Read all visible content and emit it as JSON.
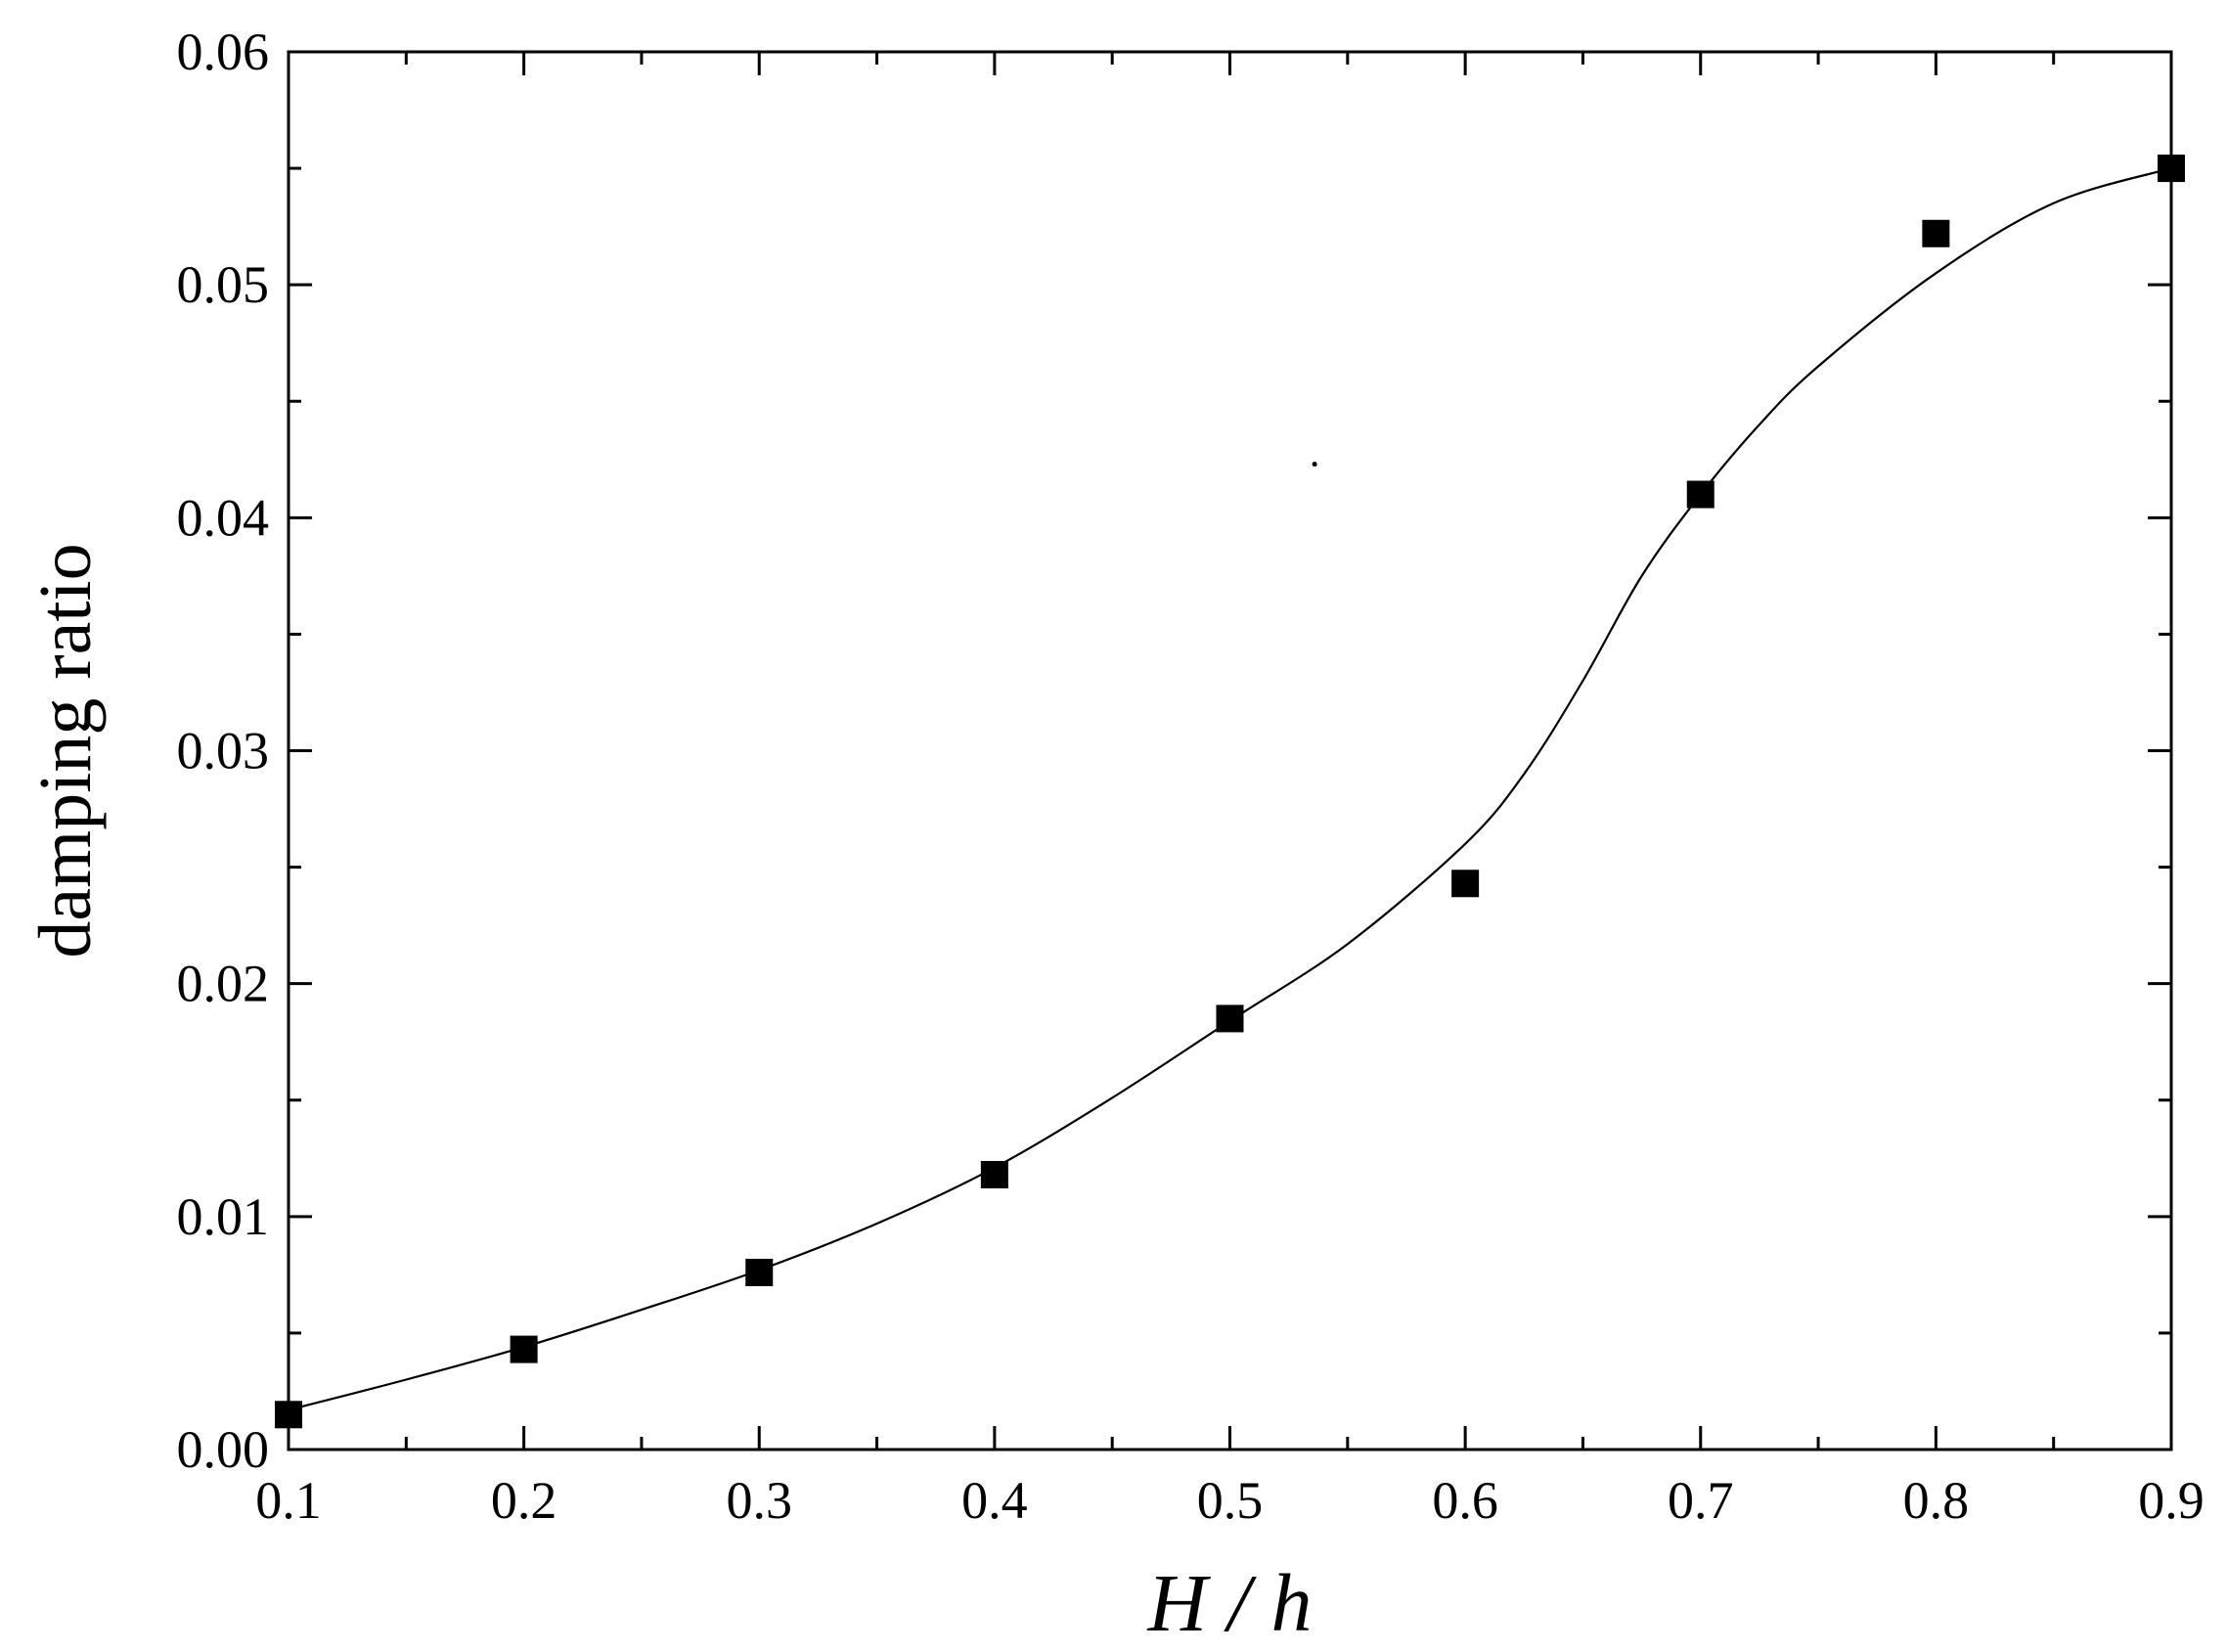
{
  "chart_data": {
    "type": "scatter",
    "title": "",
    "xlabel": "H / h",
    "ylabel": "damping ratio",
    "xlim": [
      0.1,
      0.9
    ],
    "ylim": [
      0.0,
      0.06
    ],
    "x_ticks": [
      "0.1",
      "0.2",
      "0.3",
      "0.4",
      "0.5",
      "0.6",
      "0.7",
      "0.8",
      "0.9"
    ],
    "y_ticks": [
      "0.00",
      "0.01",
      "0.02",
      "0.03",
      "0.04",
      "0.05",
      "0.06"
    ],
    "grid": false,
    "legend": "none",
    "series": [
      {
        "marker": "filled-square",
        "color": "#000000",
        "x": [
          0.1,
          0.2,
          0.3,
          0.4,
          0.5,
          0.6,
          0.7,
          0.8,
          0.9
        ],
        "y": [
          0.0015,
          0.0043,
          0.0076,
          0.0118,
          0.0185,
          0.0243,
          0.041,
          0.0522,
          0.055
        ]
      }
    ],
    "fit_curve": {
      "style": "thin-solid-line",
      "color": "#000000",
      "x": [
        0.1,
        0.15,
        0.2,
        0.25,
        0.3,
        0.35,
        0.4,
        0.45,
        0.5,
        0.55,
        0.6,
        0.625,
        0.65,
        0.675,
        0.7,
        0.725,
        0.75,
        0.8,
        0.85,
        0.9
      ],
      "y": [
        0.0017,
        0.003,
        0.0044,
        0.006,
        0.0077,
        0.0097,
        0.0121,
        0.0151,
        0.0184,
        0.0217,
        0.026,
        0.029,
        0.033,
        0.0375,
        0.041,
        0.044,
        0.0465,
        0.0505,
        0.0535,
        0.055
      ]
    },
    "stray_mark": {
      "x": 0.536,
      "y": 0.0423
    }
  }
}
